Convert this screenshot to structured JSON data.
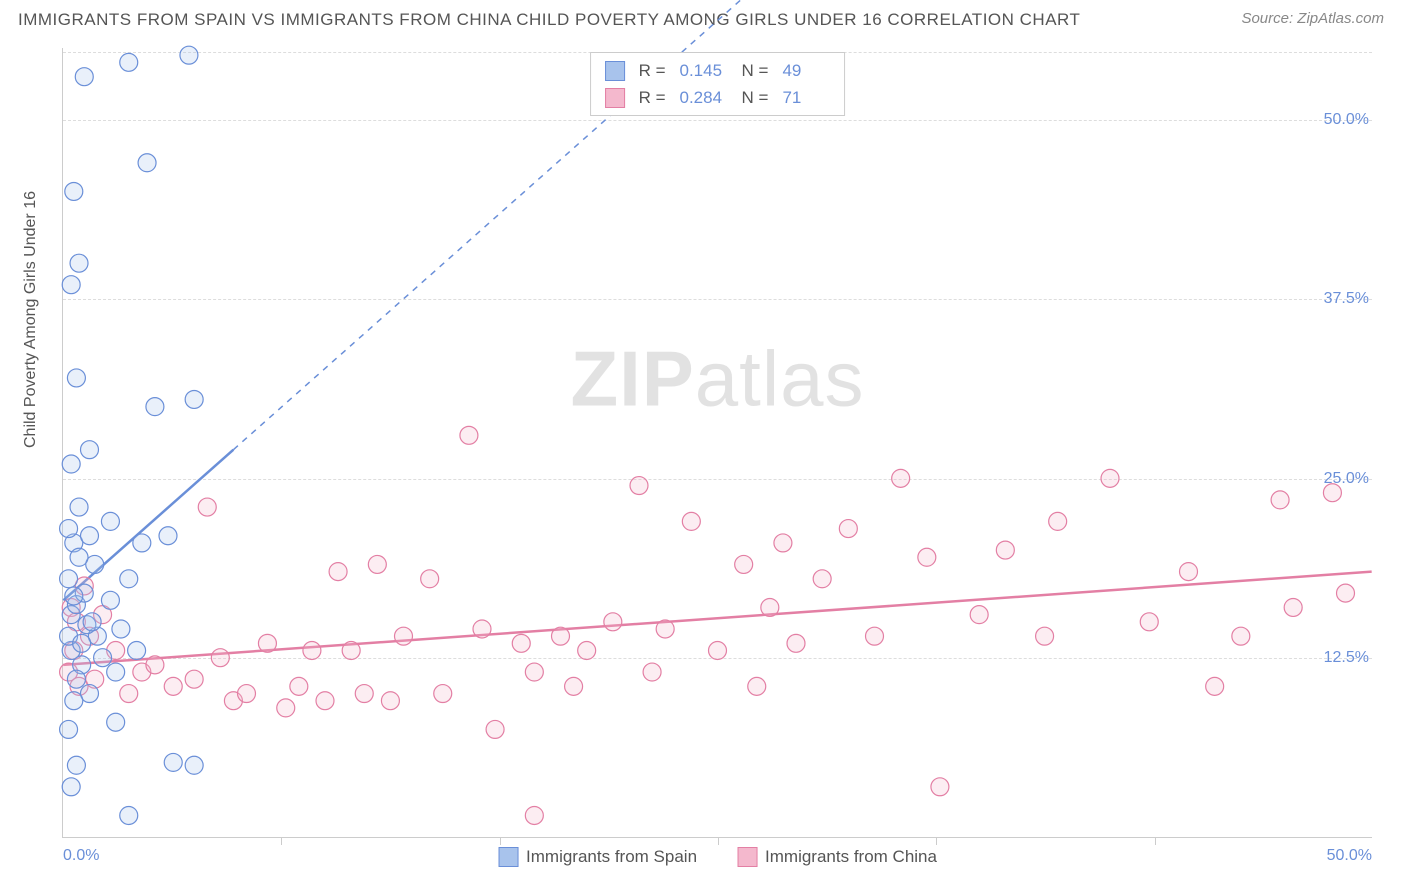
{
  "title": "IMMIGRANTS FROM SPAIN VS IMMIGRANTS FROM CHINA CHILD POVERTY AMONG GIRLS UNDER 16 CORRELATION CHART",
  "source": "Source: ZipAtlas.com",
  "y_axis_label": "Child Poverty Among Girls Under 16",
  "watermark_a": "ZIP",
  "watermark_b": "atlas",
  "chart": {
    "type": "scatter",
    "background_color": "#ffffff",
    "grid_color": "#dddddd",
    "axis_color": "#cccccc",
    "xlim": [
      0,
      50
    ],
    "ylim": [
      0,
      55
    ],
    "y_ticks": [
      {
        "v": 12.5,
        "label": "12.5%"
      },
      {
        "v": 25.0,
        "label": "25.0%"
      },
      {
        "v": 37.5,
        "label": "37.5%"
      },
      {
        "v": 50.0,
        "label": "50.0%"
      }
    ],
    "x_axis": {
      "min_label": "0.0%",
      "max_label": "50.0%",
      "tick_positions": [
        8.33,
        16.67,
        25.0,
        33.33,
        41.67
      ]
    },
    "label_color": "#6a8fd8",
    "label_fontsize": 16,
    "marker_radius": 9,
    "marker_stroke_width": 1.2,
    "marker_fill_opacity": 0.25,
    "line_width_solid": 2.5,
    "line_width_dash": 1.5,
    "dash_pattern": "6,6"
  },
  "series": [
    {
      "key": "spain",
      "label": "Immigrants from Spain",
      "color_stroke": "#6a8fd8",
      "color_fill": "#a8c3ec",
      "R": "0.145",
      "N": "49",
      "trend": {
        "x1": 0,
        "y1": 16.5,
        "x2": 6.5,
        "y2": 27,
        "x2_ext": 30,
        "y2_ext": 65
      },
      "points": [
        [
          0.3,
          15.5
        ],
        [
          0.5,
          16.2
        ],
        [
          0.2,
          18.0
        ],
        [
          0.8,
          17.0
        ],
        [
          0.4,
          20.5
        ],
        [
          1.0,
          21.0
        ],
        [
          0.6,
          23.0
        ],
        [
          1.2,
          19.0
        ],
        [
          0.3,
          13.0
        ],
        [
          0.7,
          12.0
        ],
        [
          1.5,
          12.5
        ],
        [
          0.5,
          11.0
        ],
        [
          1.0,
          10.0
        ],
        [
          2.0,
          11.5
        ],
        [
          0.4,
          9.5
        ],
        [
          1.3,
          14.0
        ],
        [
          2.2,
          14.5
        ],
        [
          2.8,
          13.0
        ],
        [
          0.3,
          26.0
        ],
        [
          1.0,
          27.0
        ],
        [
          1.8,
          22.0
        ],
        [
          3.0,
          20.5
        ],
        [
          4.0,
          21.0
        ],
        [
          0.5,
          32.0
        ],
        [
          0.3,
          38.5
        ],
        [
          0.6,
          40.0
        ],
        [
          0.4,
          45.0
        ],
        [
          3.2,
          47.0
        ],
        [
          0.8,
          53.0
        ],
        [
          2.5,
          54.0
        ],
        [
          4.8,
          54.5
        ],
        [
          3.5,
          30.0
        ],
        [
          5.0,
          30.5
        ],
        [
          0.2,
          7.5
        ],
        [
          2.0,
          8.0
        ],
        [
          0.5,
          5.0
        ],
        [
          4.2,
          5.2
        ],
        [
          5.0,
          5.0
        ],
        [
          2.5,
          1.5
        ],
        [
          0.3,
          3.5
        ],
        [
          1.8,
          16.5
        ],
        [
          2.5,
          18.0
        ],
        [
          0.9,
          14.8
        ],
        [
          0.2,
          21.5
        ],
        [
          0.6,
          19.5
        ],
        [
          1.1,
          15.0
        ],
        [
          0.4,
          16.8
        ],
        [
          0.2,
          14.0
        ],
        [
          0.7,
          13.5
        ]
      ]
    },
    {
      "key": "china",
      "label": "Immigrants from China",
      "color_stroke": "#e37fa4",
      "color_fill": "#f4b8cd",
      "R": "0.284",
      "N": "71",
      "trend": {
        "x1": 0,
        "y1": 12.0,
        "x2": 50,
        "y2": 18.5
      },
      "points": [
        [
          0.3,
          16.0
        ],
        [
          0.5,
          15.0
        ],
        [
          0.8,
          17.5
        ],
        [
          1.0,
          14.0
        ],
        [
          0.4,
          13.0
        ],
        [
          1.5,
          15.5
        ],
        [
          0.2,
          11.5
        ],
        [
          0.6,
          10.5
        ],
        [
          1.2,
          11.0
        ],
        [
          2.0,
          13.0
        ],
        [
          2.5,
          10.0
        ],
        [
          3.0,
          11.5
        ],
        [
          3.5,
          12.0
        ],
        [
          4.2,
          10.5
        ],
        [
          5.0,
          11.0
        ],
        [
          5.5,
          23.0
        ],
        [
          6.0,
          12.5
        ],
        [
          6.5,
          9.5
        ],
        [
          7.0,
          10.0
        ],
        [
          7.8,
          13.5
        ],
        [
          8.5,
          9.0
        ],
        [
          9.0,
          10.5
        ],
        [
          9.5,
          13.0
        ],
        [
          10.0,
          9.5
        ],
        [
          10.5,
          18.5
        ],
        [
          11.0,
          13.0
        ],
        [
          11.5,
          10.0
        ],
        [
          12.0,
          19.0
        ],
        [
          12.5,
          9.5
        ],
        [
          13.0,
          14.0
        ],
        [
          14.0,
          18.0
        ],
        [
          14.5,
          10.0
        ],
        [
          15.5,
          28.0
        ],
        [
          16.0,
          14.5
        ],
        [
          16.5,
          7.5
        ],
        [
          17.5,
          13.5
        ],
        [
          18.0,
          11.5
        ],
        [
          18.0,
          1.5
        ],
        [
          19.0,
          14.0
        ],
        [
          19.5,
          10.5
        ],
        [
          20.0,
          13.0
        ],
        [
          21.0,
          15.0
        ],
        [
          22.0,
          24.5
        ],
        [
          22.5,
          11.5
        ],
        [
          23.0,
          14.5
        ],
        [
          24.0,
          22.0
        ],
        [
          25.0,
          13.0
        ],
        [
          26.0,
          19.0
        ],
        [
          26.5,
          10.5
        ],
        [
          27.0,
          16.0
        ],
        [
          27.5,
          20.5
        ],
        [
          28.0,
          13.5
        ],
        [
          29.0,
          18.0
        ],
        [
          30.0,
          21.5
        ],
        [
          31.0,
          14.0
        ],
        [
          32.0,
          25.0
        ],
        [
          33.0,
          19.5
        ],
        [
          33.5,
          3.5
        ],
        [
          35.0,
          15.5
        ],
        [
          36.0,
          20.0
        ],
        [
          37.5,
          14.0
        ],
        [
          38.0,
          22.0
        ],
        [
          40.0,
          25.0
        ],
        [
          41.5,
          15.0
        ],
        [
          43.0,
          18.5
        ],
        [
          44.0,
          10.5
        ],
        [
          45.0,
          14.0
        ],
        [
          46.5,
          23.5
        ],
        [
          47.0,
          16.0
        ],
        [
          48.5,
          24.0
        ],
        [
          49.0,
          17.0
        ]
      ]
    }
  ]
}
